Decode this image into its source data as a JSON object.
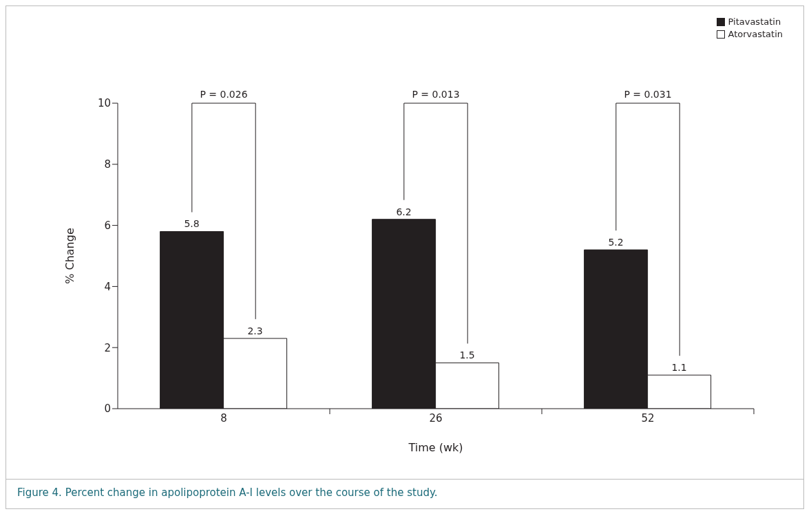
{
  "chart_data": {
    "type": "bar",
    "xlabel": "Time (wk)",
    "ylabel": "% Change",
    "categories": [
      "8",
      "26",
      "52"
    ],
    "series": [
      {
        "name": "Pitavastatin",
        "color": "#231f20",
        "values": [
          5.8,
          6.2,
          5.2
        ]
      },
      {
        "name": "Atorvastatin",
        "color": "#ffffff",
        "values": [
          2.3,
          1.5,
          1.1
        ]
      }
    ],
    "ylim": [
      0,
      10
    ],
    "yticks": [
      0,
      2,
      4,
      6,
      8,
      10
    ],
    "data_labels": true,
    "legend": "top right",
    "grid": false,
    "annotations": [
      "P = 0.026",
      "P = 0.013",
      "P = 0.031",
      "Figure 4. Percent change in apolipoprotein A-I levels over the course of the study."
    ]
  }
}
